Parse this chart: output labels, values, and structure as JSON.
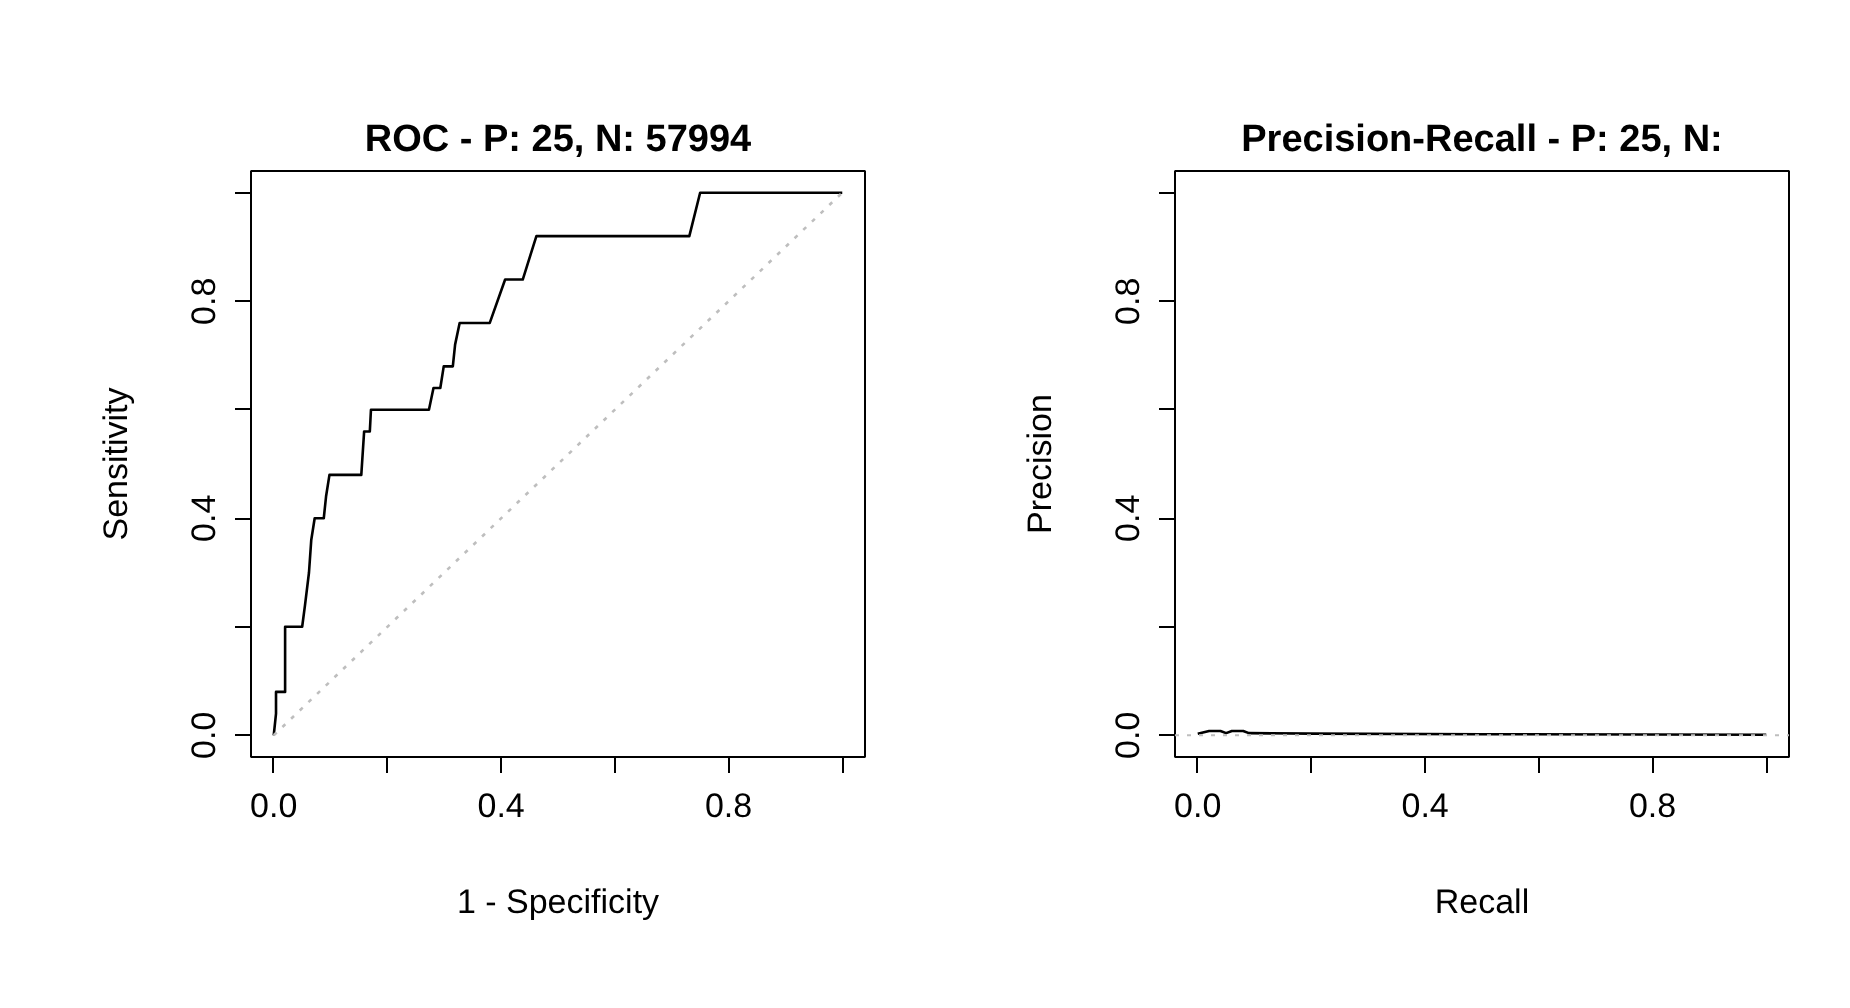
{
  "chart_data": [
    {
      "type": "line",
      "title": "ROC - P: 25, N: 57994",
      "xlabel": "1 - Specificity",
      "ylabel": "Sensitivity",
      "series": [
        {
          "color": "#000000",
          "x": [
            0,
            0.004,
            0.004,
            0.02,
            0.02,
            0.05,
            0.055,
            0.062,
            0.066,
            0.072,
            0.088,
            0.092,
            0.098,
            0.154,
            0.159,
            0.169,
            0.171,
            0.273,
            0.281,
            0.293,
            0.299,
            0.315,
            0.319,
            0.327,
            0.38,
            0.407,
            0.438,
            0.462,
            0.731,
            0.75,
            1
          ],
          "values": [
            0,
            0.04,
            0.08,
            0.08,
            0.2,
            0.2,
            0.24,
            0.3,
            0.36,
            0.4,
            0.4,
            0.44,
            0.48,
            0.48,
            0.56,
            0.56,
            0.6,
            0.6,
            0.64,
            0.64,
            0.68,
            0.68,
            0.72,
            0.76,
            0.76,
            0.84,
            0.84,
            0.92,
            0.92,
            1,
            1
          ]
        },
        {
          "color": "#bebebe",
          "line_style": "dotted",
          "x": [
            0,
            1
          ],
          "values": [
            0,
            1
          ]
        }
      ],
      "xlim": [
        -0.04,
        1.04
      ],
      "ylim": [
        -0.04,
        1.04
      ],
      "xticks": [
        {
          "value": 0,
          "label": "0.0"
        },
        {
          "value": 0.2,
          "label": null
        },
        {
          "value": 0.4,
          "label": "0.4"
        },
        {
          "value": 0.6,
          "label": null
        },
        {
          "value": 0.8,
          "label": "0.8"
        },
        {
          "value": 1,
          "label": null
        }
      ],
      "yticks": [
        {
          "value": 0,
          "label": "0.0"
        },
        {
          "value": 0.2,
          "label": null
        },
        {
          "value": 0.4,
          "label": "0.4"
        },
        {
          "value": 0.6,
          "label": null
        },
        {
          "value": 0.8,
          "label": "0.8"
        },
        {
          "value": 1,
          "label": null
        }
      ],
      "grid": false
    },
    {
      "type": "line",
      "title": "Precision-Recall - P: 25, N:",
      "xlabel": "Recall",
      "ylabel": "Precision",
      "series": [
        {
          "color": "#000000",
          "x": [
            0,
            0.02,
            0.04,
            0.05,
            0.06,
            0.08,
            0.09,
            0.2,
            0.5,
            1
          ],
          "values": [
            0.003,
            0.008,
            0.008,
            0.004,
            0.008,
            0.008,
            0.004,
            0.003,
            0.002,
            0.001
          ]
        }
      ],
      "ref_lines": [
        {
          "axis": "y",
          "value": 0,
          "color": "#bebebe",
          "line_style": "dotted"
        }
      ],
      "xlim": [
        -0.04,
        1.04
      ],
      "ylim": [
        -0.04,
        1.04
      ],
      "xticks": [
        {
          "value": 0,
          "label": "0.0"
        },
        {
          "value": 0.2,
          "label": null
        },
        {
          "value": 0.4,
          "label": "0.4"
        },
        {
          "value": 0.6,
          "label": null
        },
        {
          "value": 0.8,
          "label": "0.8"
        },
        {
          "value": 1,
          "label": null
        }
      ],
      "yticks": [
        {
          "value": 0,
          "label": "0.0"
        },
        {
          "value": 0.2,
          "label": null
        },
        {
          "value": 0.4,
          "label": "0.4"
        },
        {
          "value": 0.6,
          "label": null
        },
        {
          "value": 0.8,
          "label": "0.8"
        },
        {
          "value": 1,
          "label": null
        }
      ],
      "grid": false
    }
  ]
}
